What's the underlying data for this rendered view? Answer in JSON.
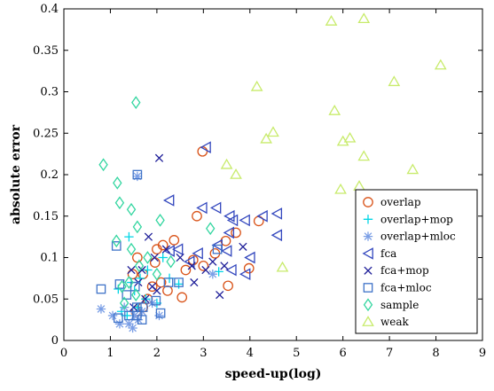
{
  "chart_data": {
    "type": "scatter",
    "title": "",
    "xlabel": "speed-up(log)",
    "ylabel": "absolute error",
    "xlim": [
      0,
      9
    ],
    "ylim": [
      0,
      0.4
    ],
    "xticks": [
      0,
      1,
      2,
      3,
      4,
      5,
      6,
      7,
      8,
      9
    ],
    "yticks": [
      0,
      0.05,
      0.1,
      0.15,
      0.2,
      0.25,
      0.3,
      0.35,
      0.4
    ],
    "ytick_labels": [
      "0",
      "0.05",
      "0.1",
      "0.15",
      "0.2",
      "0.25",
      "0.3",
      "0.35",
      "0.4"
    ],
    "grid": false,
    "legend_position": "lower-right",
    "series": [
      {
        "name": "overlap",
        "marker": "circle",
        "color": "#D95319",
        "points": [
          [
            2.98,
            0.228
          ],
          [
            2.86,
            0.15
          ],
          [
            4.19,
            0.144
          ],
          [
            3.7,
            0.13
          ],
          [
            3.48,
            0.12
          ],
          [
            3.25,
            0.105
          ],
          [
            3.0,
            0.09
          ],
          [
            2.78,
            0.097
          ],
          [
            2.62,
            0.085
          ],
          [
            2.37,
            0.121
          ],
          [
            2.13,
            0.115
          ],
          [
            2.0,
            0.11
          ],
          [
            1.96,
            0.094
          ],
          [
            1.58,
            0.1
          ],
          [
            1.48,
            0.08
          ],
          [
            1.7,
            0.08
          ],
          [
            2.23,
            0.06
          ],
          [
            2.54,
            0.052
          ],
          [
            3.53,
            0.066
          ],
          [
            3.98,
            0.087
          ],
          [
            1.8,
            0.05
          ],
          [
            1.7,
            0.04
          ],
          [
            1.55,
            0.035
          ],
          [
            2.09,
            0.07
          ],
          [
            1.9,
            0.065
          ]
        ]
      },
      {
        "name": "overlap+mop",
        "marker": "plus",
        "color": "#00D6E6",
        "points": [
          [
            1.4,
            0.125
          ],
          [
            1.17,
            0.062
          ],
          [
            1.45,
            0.07
          ],
          [
            1.52,
            0.06
          ],
          [
            1.64,
            0.075
          ],
          [
            1.8,
            0.085
          ],
          [
            2.13,
            0.1
          ],
          [
            2.27,
            0.075
          ],
          [
            2.47,
            0.068
          ],
          [
            3.33,
            0.083
          ],
          [
            1.58,
            0.04
          ],
          [
            1.36,
            0.03
          ],
          [
            1.76,
            0.05
          ],
          [
            2.0,
            0.045
          ],
          [
            1.24,
            0.035
          ]
        ]
      },
      {
        "name": "overlap+mloc",
        "marker": "asterisk",
        "color": "#7B9FE6",
        "points": [
          [
            1.05,
            0.03
          ],
          [
            0.8,
            0.038
          ],
          [
            1.2,
            0.02
          ],
          [
            1.4,
            0.02
          ],
          [
            1.52,
            0.03
          ],
          [
            1.68,
            0.035
          ],
          [
            2.05,
            0.03
          ],
          [
            1.48,
            0.015
          ],
          [
            1.58,
            0.198
          ],
          [
            3.2,
            0.08
          ],
          [
            1.3,
            0.04
          ],
          [
            1.9,
            0.045
          ],
          [
            1.6,
            0.025
          ]
        ]
      },
      {
        "name": "fca",
        "marker": "triangle-left",
        "color": "#3347BE",
        "points": [
          [
            3.05,
            0.233
          ],
          [
            2.26,
            0.169
          ],
          [
            2.97,
            0.16
          ],
          [
            3.27,
            0.16
          ],
          [
            3.56,
            0.15
          ],
          [
            3.55,
            0.13
          ],
          [
            3.63,
            0.145
          ],
          [
            3.89,
            0.145
          ],
          [
            4.27,
            0.15
          ],
          [
            4.58,
            0.153
          ],
          [
            4.58,
            0.127
          ],
          [
            4.0,
            0.1
          ],
          [
            3.5,
            0.108
          ],
          [
            3.3,
            0.115
          ],
          [
            2.88,
            0.105
          ],
          [
            2.7,
            0.095
          ],
          [
            2.45,
            0.11
          ],
          [
            2.27,
            0.108
          ],
          [
            3.9,
            0.08
          ],
          [
            3.6,
            0.085
          ]
        ]
      },
      {
        "name": "fca+mop",
        "marker": "cross",
        "color": "#1F1F99",
        "points": [
          [
            2.05,
            0.22
          ],
          [
            1.82,
            0.125
          ],
          [
            1.95,
            0.1
          ],
          [
            1.68,
            0.085
          ],
          [
            1.45,
            0.085
          ],
          [
            1.6,
            0.07
          ],
          [
            1.9,
            0.065
          ],
          [
            2.0,
            0.06
          ],
          [
            2.2,
            0.11
          ],
          [
            2.5,
            0.1
          ],
          [
            2.75,
            0.09
          ],
          [
            2.8,
            0.07
          ],
          [
            3.05,
            0.085
          ],
          [
            3.2,
            0.095
          ],
          [
            3.35,
            0.055
          ],
          [
            3.45,
            0.09
          ],
          [
            3.85,
            0.113
          ],
          [
            1.75,
            0.05
          ],
          [
            1.5,
            0.04
          ]
        ]
      },
      {
        "name": "fca+mloc",
        "marker": "square",
        "color": "#3F73C8",
        "points": [
          [
            1.58,
            0.2
          ],
          [
            1.13,
            0.114
          ],
          [
            1.2,
            0.068
          ],
          [
            0.8,
            0.062
          ],
          [
            1.17,
            0.027
          ],
          [
            1.4,
            0.03
          ],
          [
            1.53,
            0.065
          ],
          [
            1.57,
            0.04
          ],
          [
            1.7,
            0.04
          ],
          [
            1.57,
            0.03
          ],
          [
            1.68,
            0.025
          ],
          [
            1.98,
            0.048
          ],
          [
            2.08,
            0.033
          ],
          [
            2.25,
            0.07
          ],
          [
            2.47,
            0.07
          ],
          [
            3.3,
            0.11
          ],
          [
            1.35,
            0.055
          ]
        ]
      },
      {
        "name": "sample",
        "marker": "diamond",
        "color": "#33D6A0",
        "points": [
          [
            1.55,
            0.287
          ],
          [
            0.85,
            0.212
          ],
          [
            1.15,
            0.19
          ],
          [
            1.2,
            0.166
          ],
          [
            1.45,
            0.158
          ],
          [
            1.58,
            0.137
          ],
          [
            1.13,
            0.12
          ],
          [
            1.45,
            0.11
          ],
          [
            1.8,
            0.1
          ],
          [
            1.62,
            0.09
          ],
          [
            2.07,
            0.145
          ],
          [
            2.3,
            0.095
          ],
          [
            2.0,
            0.08
          ],
          [
            3.15,
            0.135
          ],
          [
            1.4,
            0.07
          ],
          [
            1.55,
            0.055
          ],
          [
            1.3,
            0.045
          ],
          [
            1.25,
            0.065
          ]
        ]
      },
      {
        "name": "weak",
        "marker": "triangle-up",
        "color": "#C8EB6B",
        "points": [
          [
            5.75,
            0.385
          ],
          [
            6.45,
            0.388
          ],
          [
            8.1,
            0.332
          ],
          [
            7.1,
            0.312
          ],
          [
            4.15,
            0.306
          ],
          [
            5.82,
            0.277
          ],
          [
            4.5,
            0.251
          ],
          [
            4.35,
            0.243
          ],
          [
            6.0,
            0.24
          ],
          [
            6.15,
            0.244
          ],
          [
            6.45,
            0.222
          ],
          [
            3.5,
            0.212
          ],
          [
            3.7,
            0.2
          ],
          [
            7.5,
            0.206
          ],
          [
            5.95,
            0.182
          ],
          [
            6.35,
            0.186
          ],
          [
            4.7,
            0.088
          ]
        ]
      }
    ]
  }
}
